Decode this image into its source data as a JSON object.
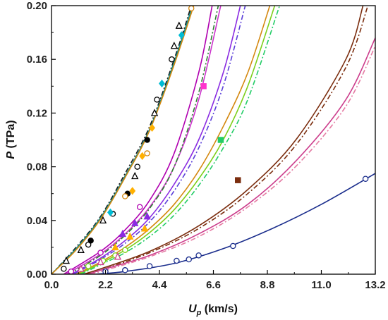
{
  "chart_data": {
    "type": "line",
    "xlabel": "U",
    "xlabel_sub": "p",
    "xlabel_unit": " (km/s)",
    "ylabel": "P",
    "ylabel_unit": " (TPa)",
    "xlim": [
      0,
      13.2
    ],
    "ylim": [
      0,
      0.2
    ],
    "xticks": [
      "0.0",
      "2.2",
      "4.4",
      "6.6",
      "8.8",
      "11.0",
      "13.2"
    ],
    "yticks": [
      "0.00",
      "0.04",
      "0.08",
      "0.12",
      "0.16",
      "0.20"
    ],
    "grid": false,
    "legend": "none",
    "series": [
      {
        "color": "#1a1a1a",
        "style": "dashdot",
        "x": [
          0,
          1,
          2,
          3,
          4,
          5,
          5.7
        ],
        "y": [
          0,
          0.02,
          0.043,
          0.075,
          0.11,
          0.16,
          0.2
        ]
      },
      {
        "color": "#0b8a8a",
        "style": "solid",
        "x": [
          0,
          1,
          2,
          3,
          4,
          5,
          5.75
        ],
        "y": [
          0,
          0.019,
          0.042,
          0.073,
          0.108,
          0.158,
          0.2
        ]
      },
      {
        "color": "#d4880f",
        "style": "solid",
        "x": [
          0,
          1,
          2,
          3,
          4,
          5,
          5.8
        ],
        "y": [
          0,
          0.018,
          0.041,
          0.072,
          0.107,
          0.156,
          0.2
        ]
      },
      {
        "color": "#b000b0",
        "style": "solid",
        "x": [
          0.5,
          2,
          3,
          4,
          5,
          6,
          6.55
        ],
        "y": [
          0,
          0.017,
          0.033,
          0.055,
          0.09,
          0.15,
          0.2
        ]
      },
      {
        "color": "#cc33cc",
        "style": "solid",
        "x": [
          0.6,
          2,
          3,
          4,
          5,
          6,
          6.9
        ],
        "y": [
          0,
          0.015,
          0.03,
          0.05,
          0.08,
          0.13,
          0.2
        ]
      },
      {
        "color": "#2e7d32",
        "style": "dashdot",
        "x": [
          0.7,
          2,
          3,
          4,
          5,
          6,
          6.8
        ],
        "y": [
          0,
          0.014,
          0.029,
          0.049,
          0.08,
          0.135,
          0.2
        ]
      },
      {
        "color": "#8a2be2",
        "style": "solid",
        "x": [
          0.8,
          2,
          3,
          4,
          5,
          6,
          7,
          7.7
        ],
        "y": [
          0,
          0.012,
          0.025,
          0.042,
          0.067,
          0.1,
          0.15,
          0.2
        ]
      },
      {
        "color": "#5b3fd9",
        "style": "dashdot",
        "x": [
          0.9,
          2,
          3,
          4,
          5,
          6,
          7,
          7.9
        ],
        "y": [
          0,
          0.011,
          0.023,
          0.039,
          0.062,
          0.094,
          0.14,
          0.2
        ]
      },
      {
        "color": "#d4880f",
        "style": "solid",
        "x": [
          1,
          2,
          3,
          4,
          5,
          6,
          7,
          8,
          8.9
        ],
        "y": [
          0,
          0.009,
          0.02,
          0.034,
          0.052,
          0.077,
          0.11,
          0.15,
          0.2
        ]
      },
      {
        "color": "#7ccf1a",
        "style": "solid",
        "x": [
          1.1,
          2,
          3,
          4,
          5,
          6,
          7,
          8,
          9.1
        ],
        "y": [
          0,
          0.008,
          0.018,
          0.031,
          0.048,
          0.071,
          0.1,
          0.14,
          0.2
        ]
      },
      {
        "color": "#22cc66",
        "style": "dashdot",
        "x": [
          1.2,
          2,
          3,
          4,
          5,
          6,
          7,
          8,
          9.3
        ],
        "y": [
          0,
          0.007,
          0.016,
          0.028,
          0.044,
          0.066,
          0.094,
          0.13,
          0.2
        ]
      },
      {
        "color": "#7b2d0e",
        "style": "solid",
        "x": [
          1.3,
          2,
          4,
          6,
          8,
          10,
          12,
          12.7
        ],
        "y": [
          0,
          0.004,
          0.017,
          0.036,
          0.063,
          0.101,
          0.16,
          0.2
        ]
      },
      {
        "color": "#7b2d0e",
        "style": "dashdot",
        "x": [
          1.4,
          2,
          4,
          6,
          8,
          10,
          12,
          12.9
        ],
        "y": [
          0,
          0.003,
          0.016,
          0.034,
          0.06,
          0.097,
          0.154,
          0.2
        ]
      },
      {
        "color": "#cc3d8c",
        "style": "solid",
        "x": [
          1.5,
          2,
          4,
          6,
          8,
          10,
          12,
          13.2
        ],
        "y": [
          0,
          0.003,
          0.014,
          0.03,
          0.052,
          0.085,
          0.13,
          0.176
        ]
      },
      {
        "color": "#e57ba3",
        "style": "dashdot",
        "x": [
          1.6,
          2,
          4,
          6,
          8,
          10,
          12,
          13.2
        ],
        "y": [
          0,
          0.002,
          0.013,
          0.028,
          0.05,
          0.081,
          0.125,
          0.17
        ]
      },
      {
        "color": "#1a2d8c",
        "style": "solid",
        "x": [
          1.8,
          3,
          5,
          7,
          9,
          11,
          13.2
        ],
        "y": [
          0,
          0.002,
          0.008,
          0.019,
          0.034,
          0.052,
          0.075
        ]
      }
    ],
    "markers": [
      {
        "shape": "circle-open",
        "color": "#000000",
        "points": [
          [
            0.5,
            0.004
          ],
          [
            1.5,
            0.022
          ],
          [
            2.5,
            0.045
          ],
          [
            3.5,
            0.08
          ],
          [
            4.3,
            0.13
          ],
          [
            4.9,
            0.16
          ]
        ]
      },
      {
        "shape": "triangle-open",
        "color": "#000000",
        "points": [
          [
            0.6,
            0.01
          ],
          [
            1.2,
            0.018
          ],
          [
            2.1,
            0.04
          ],
          [
            3.4,
            0.073
          ],
          [
            4.2,
            0.12
          ],
          [
            5.0,
            0.17
          ],
          [
            5.2,
            0.185
          ]
        ]
      },
      {
        "shape": "circle-filled",
        "color": "#000000",
        "points": [
          [
            1.6,
            0.025
          ],
          [
            3.1,
            0.06
          ],
          [
            3.9,
            0.1
          ]
        ]
      },
      {
        "shape": "diamond-filled",
        "color": "#ffb000",
        "points": [
          [
            3.3,
            0.062
          ],
          [
            3.7,
            0.088
          ],
          [
            4.1,
            0.109
          ]
        ]
      },
      {
        "shape": "circle-open",
        "color": "#d4880f",
        "points": [
          [
            3.0,
            0.058
          ],
          [
            3.9,
            0.09
          ],
          [
            5.7,
            0.198
          ]
        ]
      },
      {
        "shape": "diamond-filled",
        "color": "#00bcd4",
        "points": [
          [
            2.4,
            0.046
          ],
          [
            4.5,
            0.142
          ],
          [
            5.3,
            0.178
          ]
        ]
      },
      {
        "shape": "circle-open",
        "color": "#b000b0",
        "points": [
          [
            0.8,
            0.002
          ],
          [
            2.0,
            0.016
          ],
          [
            3.6,
            0.05
          ]
        ]
      },
      {
        "shape": "square-filled",
        "color": "#ff33cc",
        "points": [
          [
            6.2,
            0.14
          ]
        ]
      },
      {
        "shape": "triangle-filled",
        "color": "#8a2be2",
        "points": [
          [
            2.9,
            0.03
          ],
          [
            3.4,
            0.038
          ],
          [
            3.9,
            0.043
          ]
        ]
      },
      {
        "shape": "triangle-filled",
        "color": "#ffb000",
        "points": [
          [
            2.6,
            0.02
          ],
          [
            3.2,
            0.028
          ],
          [
            3.8,
            0.034
          ]
        ]
      },
      {
        "shape": "circle-open",
        "color": "#7ccf1a",
        "points": [
          [
            1.5,
            0.006
          ],
          [
            2.1,
            0.01
          ],
          [
            2.6,
            0.014
          ],
          [
            3.0,
            0.018
          ]
        ]
      },
      {
        "shape": "square-filled",
        "color": "#22cc66",
        "points": [
          [
            6.9,
            0.1
          ]
        ]
      },
      {
        "shape": "square-filled",
        "color": "#7b2d0e",
        "points": [
          [
            7.6,
            0.07
          ]
        ]
      },
      {
        "shape": "triangle-open",
        "color": "#cc3d8c",
        "points": [
          [
            1.2,
            0.004
          ],
          [
            2.0,
            0.009
          ],
          [
            2.7,
            0.013
          ]
        ]
      },
      {
        "shape": "circle-open",
        "color": "#1a2d8c",
        "points": [
          [
            2.2,
            0.002
          ],
          [
            3.0,
            0.003
          ],
          [
            4.0,
            0.006
          ],
          [
            5.1,
            0.01
          ],
          [
            5.6,
            0.011
          ],
          [
            6.0,
            0.014
          ],
          [
            7.4,
            0.021
          ],
          [
            12.8,
            0.071
          ]
        ]
      }
    ]
  }
}
